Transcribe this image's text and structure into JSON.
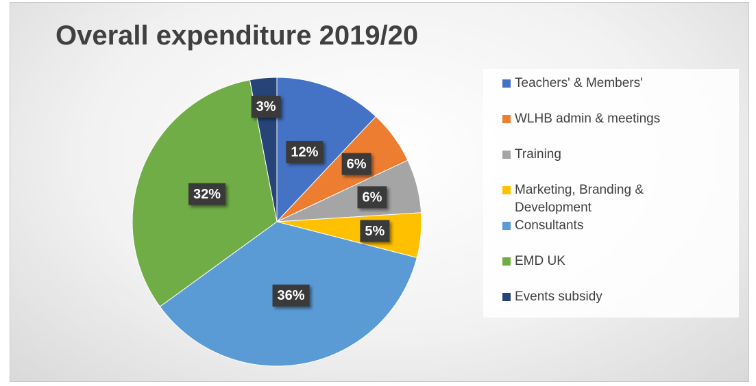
{
  "chart_data": {
    "type": "pie",
    "title": "Overall expenditure 2019/20",
    "categories": [
      "Teachers' & Members'",
      "WLHB admin & meetings",
      "Training",
      "Marketing, Branding & Development",
      "Consultants",
      "EMD UK",
      "Events subsidy"
    ],
    "values": [
      12,
      6,
      6,
      5,
      36,
      32,
      3
    ],
    "value_labels": [
      "12%",
      "6%",
      "6%",
      "5%",
      "36%",
      "32%",
      "3%"
    ],
    "colors": [
      "#4472c4",
      "#ed7d31",
      "#a5a5a5",
      "#ffc000",
      "#5b9bd5",
      "#70ad47",
      "#264478"
    ],
    "legend": "right"
  }
}
